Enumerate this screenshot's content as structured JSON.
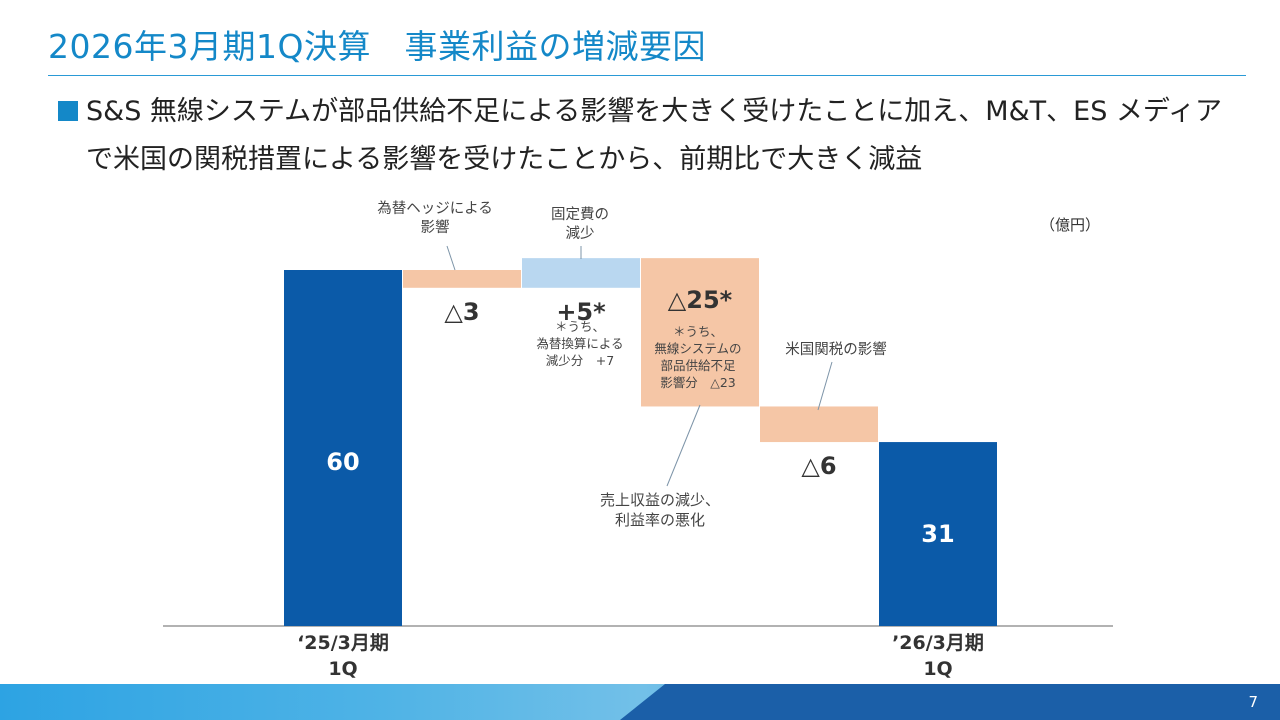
{
  "slide": {
    "title": "2026年3月期1Q決算　事業利益の増減要因",
    "bullet_lines": [
      "S&S 無線システムが部品供給不足による影響を大きく受けたことに加え、M&T、ES メディア",
      "で米国の関税措置による影響を受けたことから、前期比で大きく減益"
    ],
    "page_number": "7"
  },
  "chart_data": {
    "type": "waterfall",
    "unit_label": "（億円）",
    "colors": {
      "total": "#0b5aa8",
      "increase": "#b9d7f0",
      "decrease": "#f5c6a6",
      "axis": "#999999",
      "total_label": "#ffffff",
      "step_label": "#333333"
    },
    "ylim": [
      0,
      60
    ],
    "bars": [
      {
        "kind": "total",
        "value": 60,
        "label": "60",
        "category": [
          "‘25/3月期",
          "1Q"
        ]
      },
      {
        "kind": "decrease",
        "delta": -3,
        "label": "△3"
      },
      {
        "kind": "increase",
        "delta": 5,
        "label": "+5*"
      },
      {
        "kind": "decrease",
        "delta": -25,
        "label": "△25*"
      },
      {
        "kind": "decrease",
        "delta": -6,
        "label": "△6"
      },
      {
        "kind": "total",
        "value": 31,
        "label": "31",
        "category": [
          "’26/3月期",
          "1Q"
        ]
      }
    ],
    "annotations": [
      {
        "bar": 1,
        "lines": [
          "為替ヘッジによる",
          "影響"
        ]
      },
      {
        "bar": 2,
        "lines": [
          "固定費の",
          "減少"
        ]
      },
      {
        "bar": 2,
        "lines": [
          "＊うち、",
          "為替換算による",
          "減少分　+7"
        ]
      },
      {
        "bar": 3,
        "lines": [
          "＊うち、",
          "無線システムの",
          "部品供給不足",
          "影響分　△23"
        ]
      },
      {
        "bar": 3,
        "lines": [
          "売上収益の減少、",
          "利益率の悪化"
        ]
      },
      {
        "bar": 4,
        "lines": [
          "米国関税の影響"
        ]
      }
    ]
  }
}
